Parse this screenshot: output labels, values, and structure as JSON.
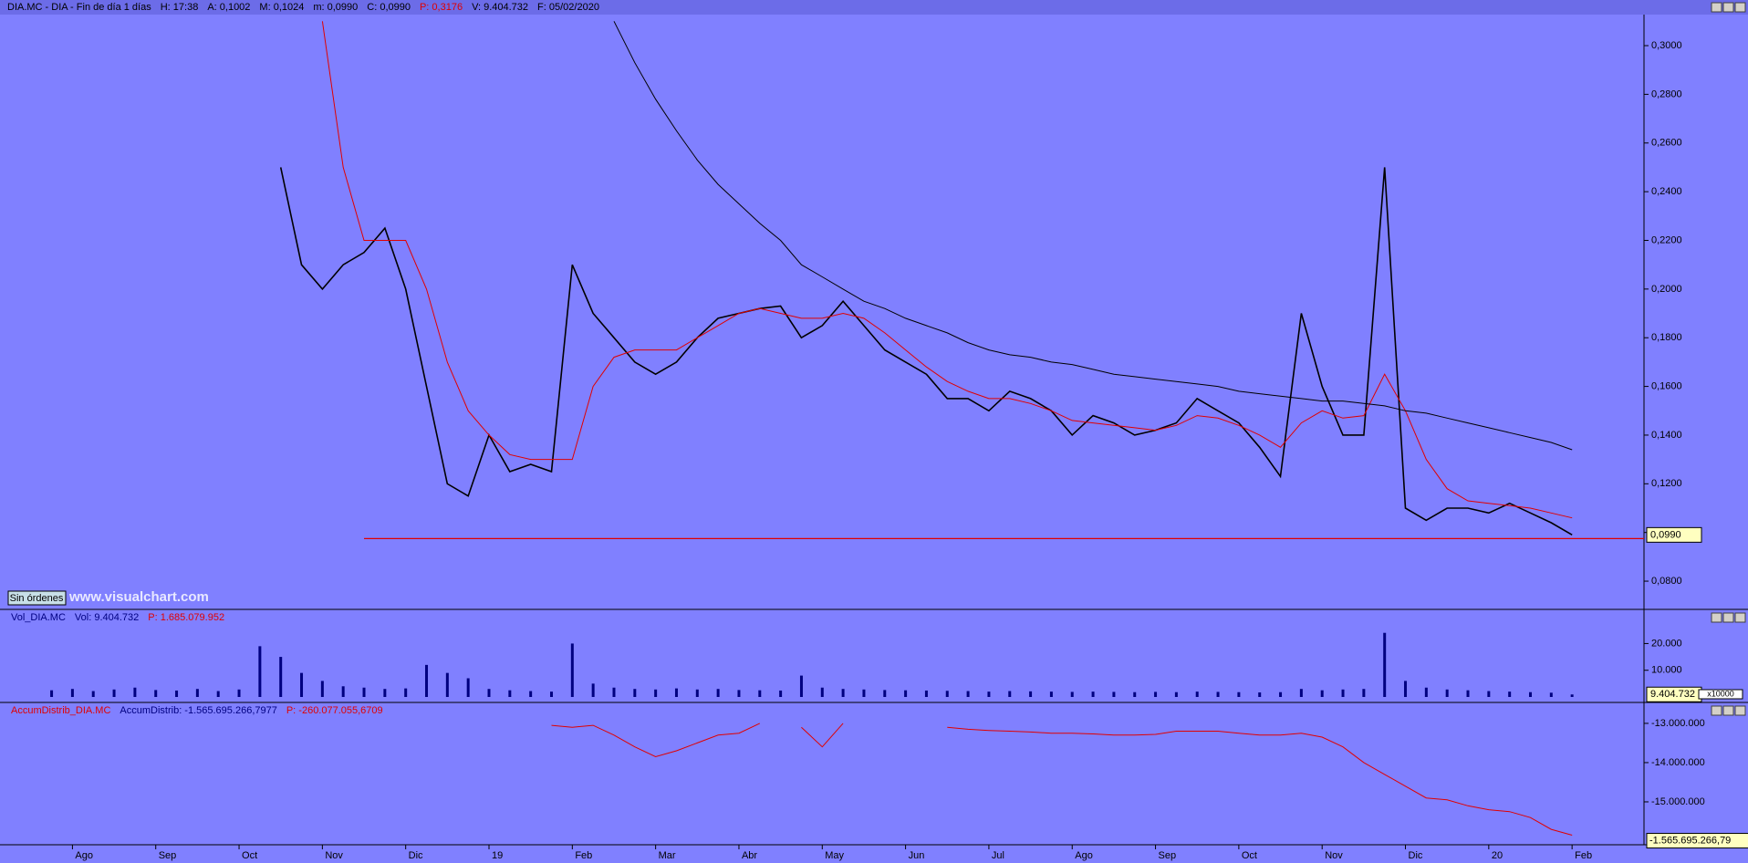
{
  "header": {
    "items": [
      {
        "text": "DIA.MC - DIA - Fin de día 1 días",
        "color": "#000000"
      },
      {
        "text": "H: 17:38",
        "color": "#000000"
      },
      {
        "text": "A: 0,1002",
        "color": "#000000"
      },
      {
        "text": "M: 0,1024",
        "color": "#000000"
      },
      {
        "text": "m: 0,0990",
        "color": "#000000"
      },
      {
        "text": "C: 0,0990",
        "color": "#000000"
      },
      {
        "text": "P: 0,3176",
        "color": "#e00000"
      },
      {
        "text": "V: 9.404.732",
        "color": "#000000"
      },
      {
        "text": "F: 05/02/2020",
        "color": "#000000"
      }
    ]
  },
  "button": "Sin órdenes",
  "watermark": "www.visualchart.com",
  "chart_data": [
    {
      "type": "line",
      "ylim": [
        0.0684,
        0.312
      ],
      "yticks": [
        {
          "value": 0.08,
          "label": "0,0800"
        },
        {
          "value": 0.1,
          "label": "0,1000"
        },
        {
          "value": 0.12,
          "label": "0,1200"
        },
        {
          "value": 0.14,
          "label": "0,1400"
        },
        {
          "value": 0.16,
          "label": "0,1600"
        },
        {
          "value": 0.18,
          "label": "0,1800"
        },
        {
          "value": 0.2,
          "label": "0,2000"
        },
        {
          "value": 0.22,
          "label": "0,2200"
        },
        {
          "value": 0.24,
          "label": "0,2400"
        },
        {
          "value": 0.26,
          "label": "0,2600"
        },
        {
          "value": 0.28,
          "label": "0,2800"
        },
        {
          "value": 0.3,
          "label": "0,3000"
        }
      ],
      "hlines": [
        {
          "value": 0.0975,
          "color": "#e00000"
        }
      ],
      "last_label": {
        "value": 0.099,
        "label": "0,0990"
      },
      "series": [
        {
          "color": "#000000",
          "width": 1.6,
          "values": [
            null,
            null,
            null,
            null,
            null,
            null,
            null,
            null,
            null,
            null,
            null,
            0.25,
            0.21,
            0.2,
            0.21,
            0.215,
            0.225,
            0.2,
            0.16,
            0.12,
            0.115,
            0.14,
            0.125,
            0.128,
            0.125,
            0.21,
            0.19,
            0.18,
            0.17,
            0.165,
            0.17,
            0.18,
            0.188,
            0.19,
            0.192,
            0.193,
            0.18,
            0.185,
            0.195,
            0.185,
            0.175,
            0.17,
            0.165,
            0.155,
            0.155,
            0.15,
            0.158,
            0.155,
            0.15,
            0.14,
            0.148,
            0.145,
            0.14,
            0.142,
            0.145,
            0.155,
            0.15,
            0.145,
            0.135,
            0.123,
            0.19,
            0.16,
            0.14,
            0.14,
            0.25,
            0.11,
            0.105,
            0.11,
            0.11,
            0.108,
            0.112,
            0.108,
            0.104,
            0.099
          ]
        },
        {
          "color": "#e00000",
          "width": 1,
          "values": [
            null,
            null,
            null,
            null,
            null,
            null,
            null,
            null,
            null,
            null,
            null,
            null,
            null,
            0.31,
            0.25,
            0.22,
            0.22,
            0.22,
            0.2,
            0.17,
            0.15,
            0.14,
            0.132,
            0.13,
            0.13,
            0.13,
            0.16,
            0.172,
            0.175,
            0.175,
            0.175,
            0.18,
            0.185,
            0.19,
            0.192,
            0.19,
            0.188,
            0.188,
            0.19,
            0.188,
            0.182,
            0.175,
            0.168,
            0.162,
            0.158,
            0.155,
            0.155,
            0.153,
            0.15,
            0.146,
            0.145,
            0.144,
            0.143,
            0.142,
            0.144,
            0.148,
            0.147,
            0.144,
            0.14,
            0.135,
            0.145,
            0.15,
            0.147,
            0.148,
            0.165,
            0.15,
            0.13,
            0.118,
            0.113,
            0.112,
            0.111,
            0.11,
            0.108,
            0.106
          ]
        },
        {
          "color": "#000000",
          "width": 1,
          "values": [
            null,
            null,
            null,
            null,
            null,
            null,
            null,
            null,
            null,
            null,
            null,
            null,
            null,
            null,
            null,
            null,
            null,
            null,
            null,
            null,
            null,
            null,
            null,
            null,
            null,
            null,
            null,
            0.31,
            0.293,
            0.278,
            0.265,
            0.253,
            0.243,
            0.235,
            0.227,
            0.22,
            0.21,
            0.205,
            0.2,
            0.195,
            0.192,
            0.188,
            0.185,
            0.182,
            0.178,
            0.175,
            0.173,
            0.172,
            0.17,
            0.169,
            0.167,
            0.165,
            0.164,
            0.163,
            0.162,
            0.161,
            0.16,
            0.158,
            0.157,
            0.156,
            0.155,
            0.154,
            0.154,
            0.153,
            0.152,
            0.15,
            0.149,
            0.147,
            0.145,
            0.143,
            0.141,
            0.139,
            0.137,
            0.134
          ]
        }
      ]
    },
    {
      "type": "bar",
      "title_items": [
        {
          "text": "Vol_DIA.MC",
          "color": "#000080"
        },
        {
          "text": "Vol: 9.404.732",
          "color": "#000080"
        },
        {
          "text": "P: 1.685.079.952",
          "color": "#e00000"
        }
      ],
      "multiplier": "x10000",
      "ylim": [
        0,
        28000
      ],
      "yticks": [
        {
          "value": 10000,
          "label": "10.000"
        },
        {
          "value": 20000,
          "label": "20.000"
        }
      ],
      "color": "#000080",
      "last_label": {
        "value": 940.4732,
        "label": "9.404.732"
      },
      "values": [
        2500,
        3000,
        2200,
        2800,
        3500,
        2600,
        2400,
        3000,
        2200,
        2800,
        19000,
        15000,
        9000,
        6000,
        4000,
        3500,
        3000,
        3200,
        12000,
        9000,
        7000,
        3000,
        2500,
        2200,
        2000,
        20000,
        5000,
        3500,
        3000,
        2800,
        3200,
        2800,
        3000,
        2600,
        2500,
        2400,
        8000,
        3500,
        3000,
        2800,
        2600,
        2500,
        2400,
        2300,
        2200,
        2000,
        2200,
        2100,
        2000,
        1900,
        2000,
        1900,
        1800,
        1900,
        1800,
        2000,
        1900,
        1800,
        1700,
        1800,
        3000,
        2500,
        2800,
        3000,
        24000,
        6000,
        3500,
        2800,
        2500,
        2200,
        2000,
        1800,
        1600,
        940.4732
      ]
    },
    {
      "type": "line",
      "title_items": [
        {
          "text": "AccumDistrib_DIA.MC",
          "color": "#e00000"
        },
        {
          "text": "AccumDistrib: -1.565.695.266,7977",
          "color": "#000080"
        },
        {
          "text": "P: -260.077.055,6709",
          "color": "#e00000"
        }
      ],
      "ylim": [
        -16070000,
        -12560000
      ],
      "yticks": [
        {
          "value": -13000000,
          "label": "-13.000.000"
        },
        {
          "value": -14000000,
          "label": "-14.000.000"
        },
        {
          "value": -15000000,
          "label": "-15.000.000"
        }
      ],
      "last_label_text": "-1.565.695.266,79",
      "categories": [
        null,
        "Ago",
        null,
        null,
        null,
        "Sep",
        null,
        null,
        null,
        "Oct",
        null,
        null,
        null,
        "Nov",
        null,
        null,
        null,
        "Dic",
        null,
        null,
        null,
        "19",
        null,
        null,
        null,
        "Feb",
        null,
        null,
        null,
        "Mar",
        null,
        null,
        null,
        "Abr",
        null,
        null,
        null,
        "May",
        null,
        null,
        null,
        "Jun",
        null,
        null,
        null,
        "Jul",
        null,
        null,
        null,
        "Ago",
        null,
        null,
        null,
        "Sep",
        null,
        null,
        null,
        "Oct",
        null,
        null,
        null,
        "Nov",
        null,
        null,
        null,
        "Dic",
        null,
        null,
        null,
        "20",
        null,
        null,
        null,
        "Feb"
      ],
      "series": [
        {
          "color": "#e00000",
          "width": 1,
          "values": [
            null,
            null,
            null,
            null,
            null,
            null,
            null,
            null,
            null,
            null,
            null,
            null,
            null,
            null,
            null,
            null,
            null,
            null,
            null,
            null,
            null,
            null,
            null,
            null,
            -13050000,
            -13100000,
            -13050000,
            -13300000,
            -13600000,
            -13850000,
            -13700000,
            -13500000,
            -13300000,
            -13250000,
            -13000000,
            null,
            -13100000,
            -13600000,
            -13000000,
            null,
            null,
            null,
            null,
            -13100000,
            -13150000,
            -13180000,
            -13200000,
            -13220000,
            -13250000,
            -13250000,
            -13270000,
            -13300000,
            -13300000,
            -13280000,
            -13200000,
            -13200000,
            -13200000,
            -13250000,
            -13300000,
            -13300000,
            -13250000,
            -13350000,
            -13600000,
            -14000000,
            -14300000,
            -14600000,
            -14900000,
            -14950000,
            -15100000,
            -15200000,
            -15250000,
            -15400000,
            -15700000,
            -15850000
          ]
        }
      ]
    }
  ]
}
